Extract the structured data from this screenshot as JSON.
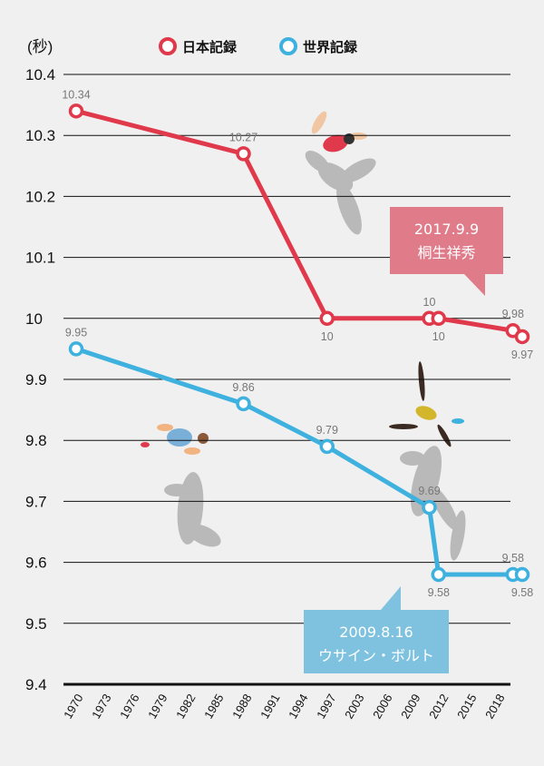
{
  "chart_data": {
    "type": "line",
    "unit": "(秒)",
    "ylim": [
      9.4,
      10.4
    ],
    "yticks": [
      "10.4",
      "10.3",
      "10.2",
      "10.1",
      "10",
      "9.9",
      "9.8",
      "9.7",
      "9.6",
      "9.5",
      "9.4"
    ],
    "xticks": [
      "1970",
      "1973",
      "1976",
      "1979",
      "1982",
      "1985",
      "1988",
      "1991",
      "1994",
      "1997",
      "2003",
      "2006",
      "2009",
      "2012",
      "2015",
      "2018"
    ],
    "legend_position": "top-center",
    "grid": true,
    "series": [
      {
        "name": "日本記録",
        "color": "#e0394b",
        "points": [
          {
            "x": "1970",
            "y": 10.34,
            "label": "10.34",
            "pos": "above"
          },
          {
            "x": "1988",
            "y": 10.27,
            "label": "10.27",
            "pos": "above"
          },
          {
            "x": "1997",
            "y": 10.0,
            "label": "10",
            "pos": "below"
          },
          {
            "x": "2008",
            "y": 10.0,
            "label": "10",
            "pos": "above"
          },
          {
            "x": "2009",
            "y": 10.0,
            "label": "10",
            "pos": "below"
          },
          {
            "x": "2017",
            "y": 9.98,
            "label": "9.98",
            "pos": "above"
          },
          {
            "x": "2018",
            "y": 9.97,
            "label": "9.97",
            "pos": "below"
          }
        ]
      },
      {
        "name": "世界記録",
        "color": "#3eb1de",
        "points": [
          {
            "x": "1970",
            "y": 9.95,
            "label": "9.95",
            "pos": "above"
          },
          {
            "x": "1988",
            "y": 9.86,
            "label": "9.86",
            "pos": "above"
          },
          {
            "x": "1997",
            "y": 9.79,
            "label": "9.79",
            "pos": "above"
          },
          {
            "x": "2008",
            "y": 9.69,
            "label": "9.69",
            "pos": "above"
          },
          {
            "x": "2009",
            "y": 9.58,
            "label": "9.58",
            "pos": "below"
          },
          {
            "x": "2017",
            "y": 9.58,
            "label": "9.58",
            "pos": "above"
          },
          {
            "x": "2018",
            "y": 9.58,
            "label": "9.58",
            "pos": "below"
          }
        ]
      }
    ],
    "annotations": [
      {
        "series": "日本記録",
        "date": "2017.9.9",
        "name": "桐生祥秀",
        "color": "#e07b8a"
      },
      {
        "series": "世界記録",
        "date": "2009.8.16",
        "name": "ウサイン・ボルト",
        "color": "#7ec2e0"
      }
    ]
  }
}
